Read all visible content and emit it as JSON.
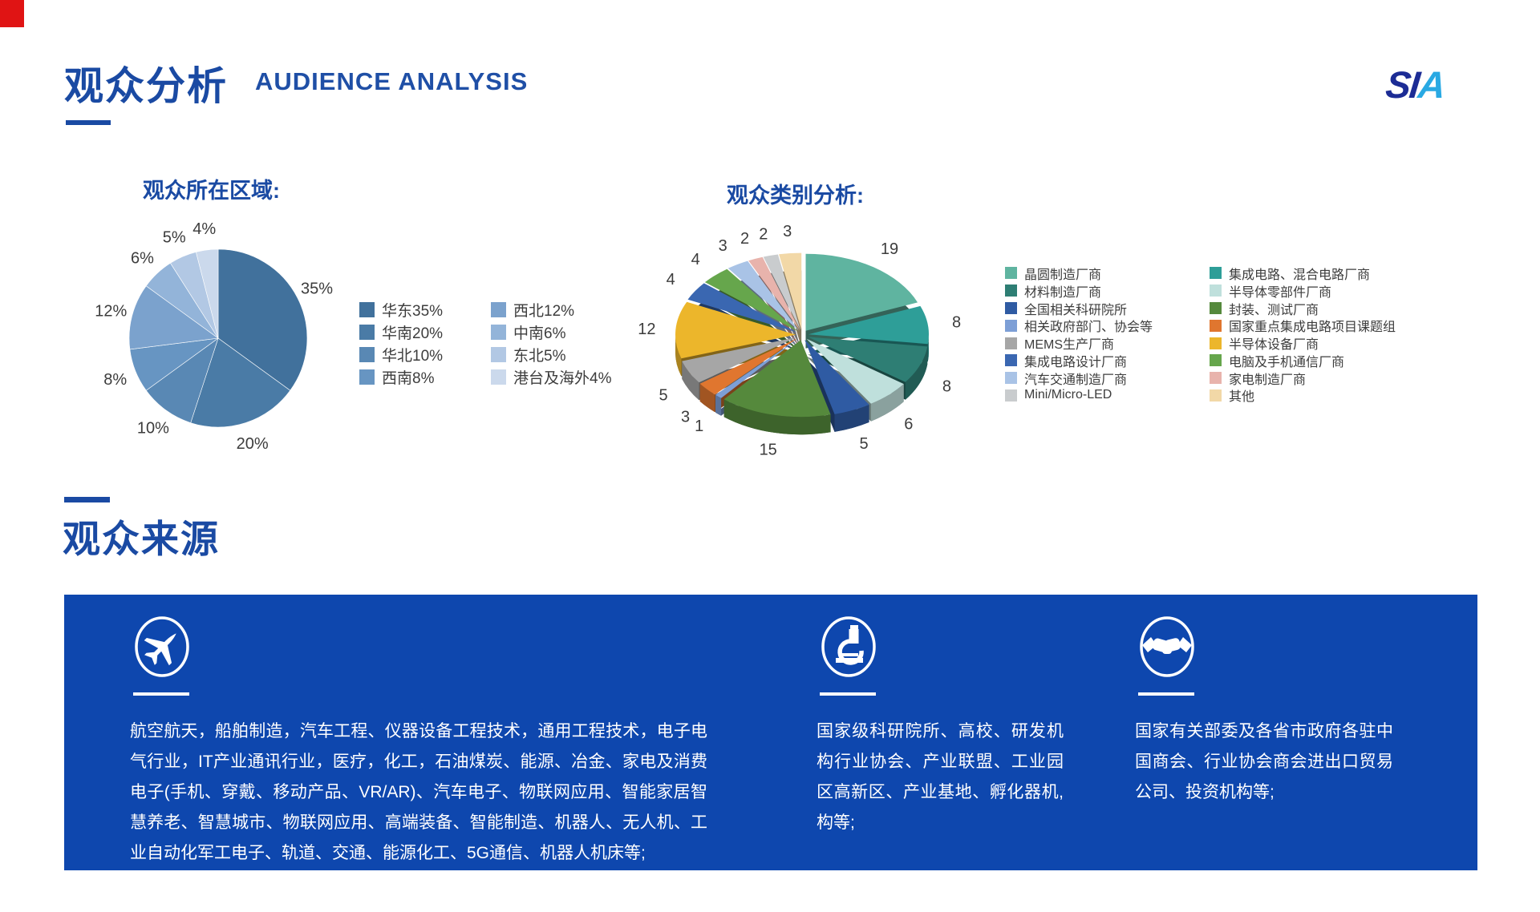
{
  "header": {
    "title_zh": "观众分析",
    "title_en": "AUDIENCE ANALYSIS",
    "accent_color": "#1a4aa3",
    "logo_parts": [
      {
        "text": "S",
        "color": "#1c2c95"
      },
      {
        "text": "I",
        "color": "#1c2c95"
      },
      {
        "text": "A",
        "color": "#29a9e3"
      }
    ]
  },
  "chart_data": [
    {
      "type": "pie",
      "title": "观众所在区域:",
      "label_format": "value%",
      "legend_label_format": "name+value%",
      "legend_position": "right-two-columns",
      "series": [
        {
          "name": "华东",
          "value": 35,
          "color": "#41719C"
        },
        {
          "name": "华南",
          "value": 20,
          "color": "#4A7BA6"
        },
        {
          "name": "华北",
          "value": 10,
          "color": "#5988B4"
        },
        {
          "name": "西南",
          "value": 8,
          "color": "#6795C2"
        },
        {
          "name": "西北",
          "value": 12,
          "color": "#7BA2CD"
        },
        {
          "name": "中南",
          "value": 6,
          "color": "#93B4D9"
        },
        {
          "name": "东北",
          "value": 5,
          "color": "#B2C8E4"
        },
        {
          "name": "港台及海外",
          "value": 4,
          "color": "#CBD9EC"
        }
      ],
      "legend_columns": [
        [
          0,
          1,
          2,
          3
        ],
        [
          4,
          5,
          6,
          7
        ]
      ]
    },
    {
      "type": "pie3d",
      "title": "观众类别分析:",
      "label_format": "value",
      "legend_label_format": "name",
      "legend_position": "right-two-columns",
      "series": [
        {
          "name": "晶圆制造厂商",
          "value": 19,
          "color": "#5FB4A0"
        },
        {
          "name": "集成电路、混合电路厂商",
          "value": 8,
          "color": "#2E9E98"
        },
        {
          "name": "材料制造厂商",
          "value": 8,
          "color": "#2E7E74"
        },
        {
          "name": "半导体零部件厂商",
          "value": 6,
          "color": "#BFE0DC"
        },
        {
          "name": "全国相关科研院所",
          "value": 5,
          "color": "#2F5BA3"
        },
        {
          "name": "封装、测试厂商",
          "value": 15,
          "color": "#55893C"
        },
        {
          "name": "相关政府部门、协会等",
          "value": 1,
          "color": "#7D9FD6"
        },
        {
          "name": "国家重点集成电路项目课题组",
          "value": 3,
          "color": "#E0762F"
        },
        {
          "name": "MEMS生产厂商",
          "value": 5,
          "color": "#A6A6A6"
        },
        {
          "name": "半导体设备厂商",
          "value": 12,
          "color": "#ECB62B"
        },
        {
          "name": "集成电路设计厂商",
          "value": 4,
          "color": "#3A67B1"
        },
        {
          "name": "电脑及手机通信厂商",
          "value": 4,
          "color": "#66A64C"
        },
        {
          "name": "汽车交通制造厂商",
          "value": 3,
          "color": "#A9C3E6"
        },
        {
          "name": "家电制造厂商",
          "value": 2,
          "color": "#E8B3AC"
        },
        {
          "name": "Mini/Micro-LED",
          "value": 2,
          "color": "#C9CCCE"
        },
        {
          "name": "其他",
          "value": 3,
          "color": "#F2D8A7"
        }
      ],
      "legend_columns": [
        [
          0,
          2,
          4,
          6,
          8,
          10,
          12,
          14
        ],
        [
          1,
          3,
          5,
          7,
          9,
          11,
          13,
          15
        ]
      ]
    }
  ],
  "source_section": {
    "title": "观众来源",
    "panel_color": "#0e47ae",
    "columns": [
      {
        "icon": "airplane-icon",
        "text": "航空航天，船舶制造，汽车工程、仪器设备工程技术，通用工程技术，电子电气行业，IT产业通讯行业，医疗，化工，石油煤炭、能源、冶金、家电及消费电子(手机、穿戴、移动产品、VR/AR)、汽车电子、物联网应用、智能家居智慧养老、智慧城市、物联网应用、高端装备、智能制造、机器人、无人机、工业自动化军工电子、轨道、交通、能源化工、5G通信、机器人机床等;"
      },
      {
        "icon": "microscope-icon",
        "text": "国家级科研院所、高校、研发机构行业协会、产业联盟、工业园区高新区、产业基地、孵化器机,构等;"
      },
      {
        "icon": "handshake-icon",
        "text": "国家有关部委及各省市政府各驻中国商会、行业协会商会进出口贸易公司、投资机构等;"
      }
    ]
  }
}
